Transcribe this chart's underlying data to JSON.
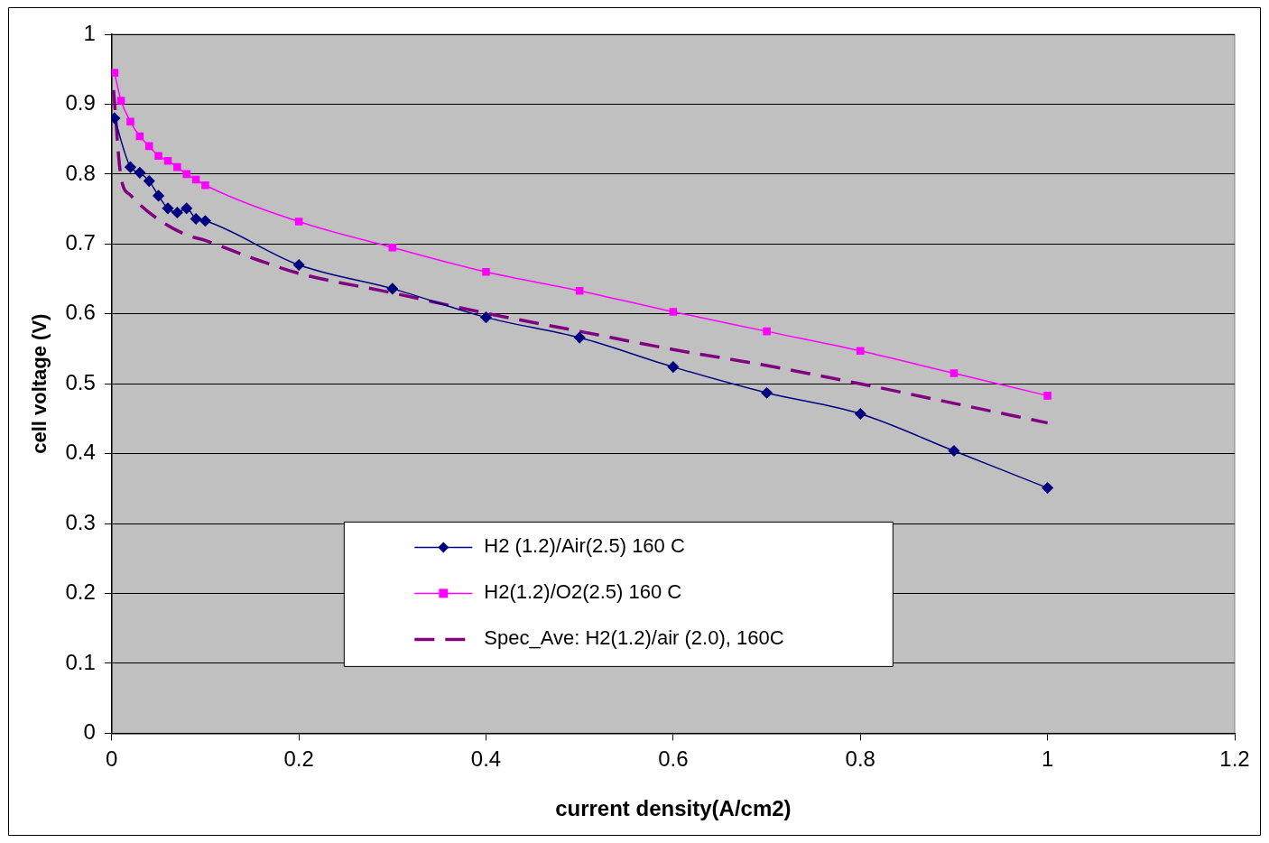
{
  "chart_data": {
    "type": "line",
    "xlabel": "current density(A/cm2)",
    "ylabel": "cell voltage (V)",
    "xlim": [
      0,
      1.2
    ],
    "xticks": [
      0,
      0.2,
      0.4,
      0.6,
      0.8,
      1,
      1.2
    ],
    "ylim": [
      0,
      1
    ],
    "yticks": [
      0,
      0.1,
      0.2,
      0.3,
      0.4,
      0.5,
      0.6,
      0.7,
      0.8,
      0.9,
      1
    ],
    "grid": "y",
    "legend": "bottom",
    "series": [
      {
        "name": "H2 (1.2)/Air(2.5) 160 C",
        "color": "#000080",
        "marker": "diamond",
        "line_style": "solid",
        "x": [
          0.003,
          0.02,
          0.03,
          0.04,
          0.05,
          0.06,
          0.07,
          0.08,
          0.09,
          0.1,
          0.2,
          0.3,
          0.4,
          0.5,
          0.6,
          0.7,
          0.8,
          0.9,
          1.0
        ],
        "values": [
          0.88,
          0.81,
          0.802,
          0.79,
          0.769,
          0.751,
          0.745,
          0.751,
          0.736,
          0.733,
          0.67,
          0.636,
          0.595,
          0.566,
          0.524,
          0.487,
          0.457,
          0.404,
          0.351
        ]
      },
      {
        "name": "H2(1.2)/O2(2.5) 160 C",
        "color": "#ff00ff",
        "marker": "square",
        "line_style": "solid",
        "x": [
          0.003,
          0.01,
          0.02,
          0.03,
          0.04,
          0.05,
          0.06,
          0.07,
          0.08,
          0.09,
          0.1,
          0.2,
          0.3,
          0.4,
          0.5,
          0.6,
          0.7,
          0.8,
          0.9,
          1.0
        ],
        "values": [
          0.945,
          0.905,
          0.875,
          0.854,
          0.84,
          0.826,
          0.819,
          0.81,
          0.8,
          0.792,
          0.784,
          0.732,
          0.695,
          0.66,
          0.633,
          0.603,
          0.575,
          0.547,
          0.515,
          0.483
        ]
      },
      {
        "name": "Spec_Ave: H2(1.2)/air (2.0), 160C",
        "color": "#800080",
        "marker": "none",
        "line_style": "dashed",
        "x": [
          0.002,
          0.01,
          0.02,
          0.05,
          0.08,
          0.1,
          0.15,
          0.2,
          0.3,
          0.4,
          0.5,
          0.6,
          0.7,
          0.8,
          0.9,
          1.0
        ],
        "values": [
          0.92,
          0.795,
          0.77,
          0.735,
          0.713,
          0.705,
          0.68,
          0.658,
          0.63,
          0.601,
          0.575,
          0.549,
          0.526,
          0.5,
          0.472,
          0.444
        ]
      }
    ]
  }
}
